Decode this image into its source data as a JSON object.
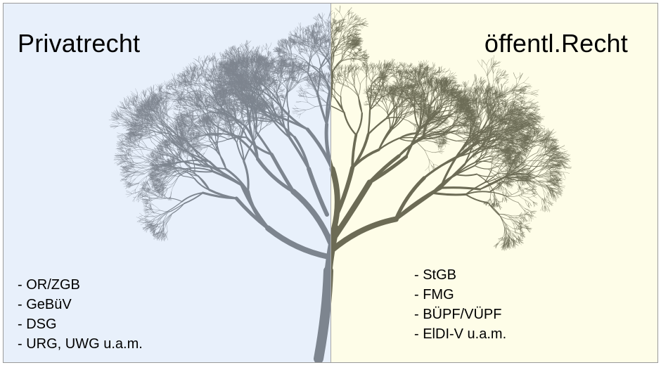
{
  "left": {
    "title": "Privatrecht",
    "items": [
      "- OR/ZGB",
      "- GeBüV",
      "- DSG",
      "- URG, UWG u.a.m."
    ],
    "background": "#e8f0fb",
    "tree_color": "#7d858f"
  },
  "right": {
    "title": "öffentl.Recht",
    "items": [
      "- StGB",
      "- FMG",
      "- BÜPF/VÜPF",
      "- ElDI-V u.a.m."
    ],
    "background": "#fefde8",
    "tree_color": "#6c6b55"
  },
  "illustration": "bare-tree"
}
